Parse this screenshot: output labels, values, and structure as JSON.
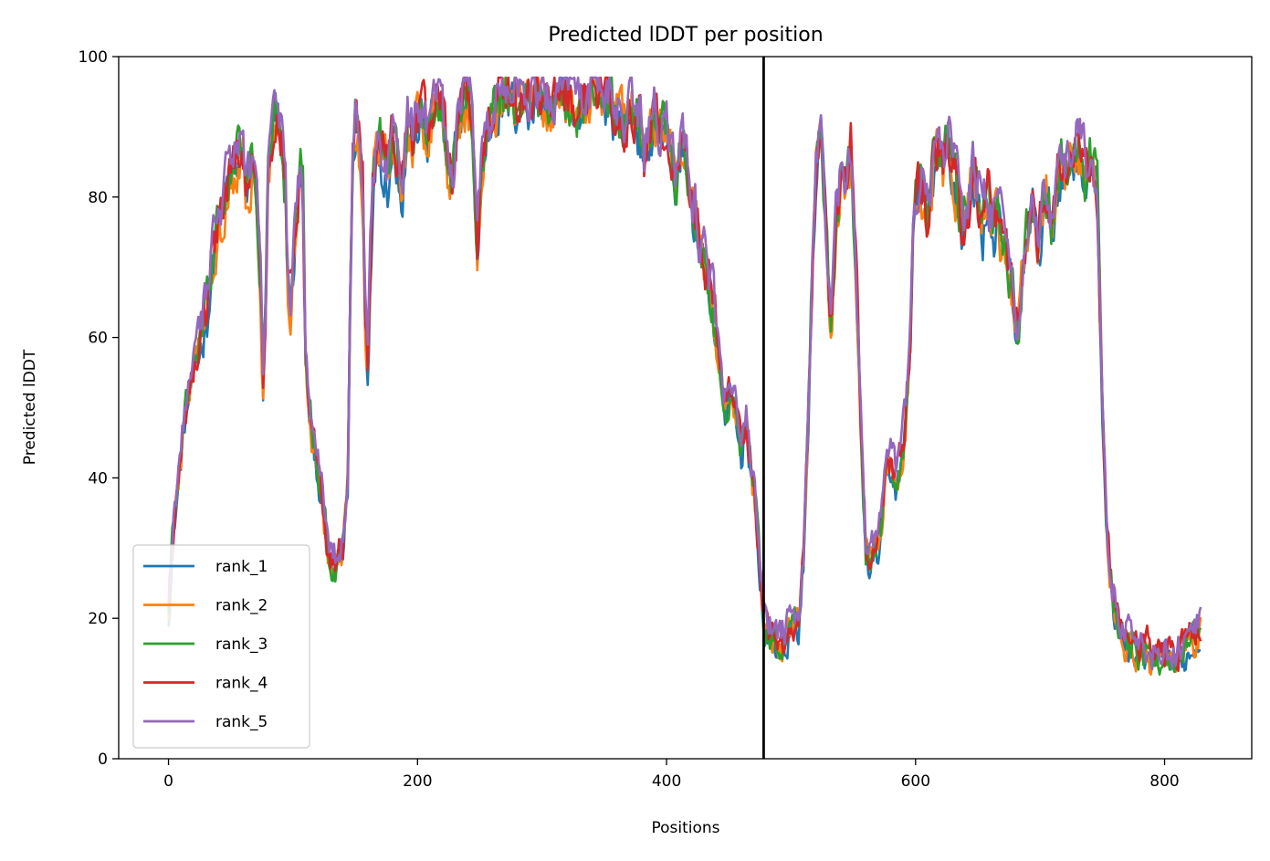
{
  "chart_data": {
    "type": "line",
    "title": "Predicted lDDT per position",
    "xlabel": "Positions",
    "ylabel": "Predicted lDDT",
    "xlim": [
      -40,
      870
    ],
    "ylim": [
      0,
      100
    ],
    "xticks": [
      0,
      200,
      400,
      600,
      800
    ],
    "yticks": [
      0,
      20,
      40,
      60,
      80,
      100
    ],
    "vline_x": 478,
    "legend_position": "lower left",
    "grid": false,
    "x_range": [
      0,
      829
    ],
    "profile": [
      [
        0,
        22
      ],
      [
        4,
        33
      ],
      [
        8,
        40
      ],
      [
        12,
        47
      ],
      [
        16,
        52
      ],
      [
        20,
        55
      ],
      [
        24,
        58
      ],
      [
        28,
        62
      ],
      [
        32,
        66
      ],
      [
        36,
        72
      ],
      [
        40,
        76
      ],
      [
        44,
        79
      ],
      [
        48,
        82
      ],
      [
        52,
        84
      ],
      [
        56,
        86
      ],
      [
        60,
        85
      ],
      [
        62,
        80
      ],
      [
        66,
        84
      ],
      [
        70,
        84
      ],
      [
        72,
        77
      ],
      [
        74,
        68
      ],
      [
        76,
        53
      ],
      [
        78,
        64
      ],
      [
        80,
        82
      ],
      [
        84,
        90
      ],
      [
        88,
        91
      ],
      [
        92,
        87
      ],
      [
        94,
        80
      ],
      [
        96,
        68
      ],
      [
        98,
        66
      ],
      [
        102,
        75
      ],
      [
        106,
        84
      ],
      [
        108,
        80
      ],
      [
        110,
        58
      ],
      [
        112,
        52
      ],
      [
        116,
        45
      ],
      [
        120,
        42
      ],
      [
        124,
        36
      ],
      [
        128,
        30
      ],
      [
        132,
        27
      ],
      [
        136,
        28
      ],
      [
        140,
        30
      ],
      [
        144,
        40
      ],
      [
        146,
        65
      ],
      [
        148,
        85
      ],
      [
        150,
        90
      ],
      [
        152,
        89
      ],
      [
        156,
        82
      ],
      [
        158,
        62
      ],
      [
        160,
        56
      ],
      [
        164,
        82
      ],
      [
        168,
        88
      ],
      [
        172,
        86
      ],
      [
        176,
        84
      ],
      [
        180,
        88
      ],
      [
        184,
        86
      ],
      [
        188,
        82
      ],
      [
        192,
        90
      ],
      [
        196,
        88
      ],
      [
        200,
        91
      ],
      [
        204,
        92
      ],
      [
        208,
        89
      ],
      [
        212,
        93
      ],
      [
        216,
        94
      ],
      [
        220,
        92
      ],
      [
        224,
        84
      ],
      [
        228,
        82
      ],
      [
        232,
        90
      ],
      [
        236,
        94
      ],
      [
        240,
        95
      ],
      [
        244,
        91
      ],
      [
        248,
        72
      ],
      [
        252,
        84
      ],
      [
        256,
        90
      ],
      [
        260,
        92
      ],
      [
        264,
        94
      ],
      [
        270,
        95
      ],
      [
        276,
        94
      ],
      [
        282,
        94
      ],
      [
        288,
        94
      ],
      [
        294,
        95
      ],
      [
        300,
        94
      ],
      [
        306,
        93
      ],
      [
        312,
        94
      ],
      [
        318,
        95
      ],
      [
        324,
        94
      ],
      [
        330,
        92
      ],
      [
        336,
        93
      ],
      [
        342,
        95
      ],
      [
        348,
        95
      ],
      [
        354,
        94
      ],
      [
        360,
        92
      ],
      [
        366,
        91
      ],
      [
        372,
        93
      ],
      [
        378,
        91
      ],
      [
        382,
        84
      ],
      [
        386,
        88
      ],
      [
        390,
        92
      ],
      [
        394,
        90
      ],
      [
        400,
        89
      ],
      [
        404,
        87
      ],
      [
        408,
        82
      ],
      [
        412,
        88
      ],
      [
        416,
        85
      ],
      [
        420,
        80
      ],
      [
        424,
        76
      ],
      [
        428,
        72
      ],
      [
        432,
        70
      ],
      [
        436,
        66
      ],
      [
        440,
        60
      ],
      [
        444,
        54
      ],
      [
        448,
        50
      ],
      [
        452,
        52
      ],
      [
        456,
        48
      ],
      [
        460,
        44
      ],
      [
        464,
        50
      ],
      [
        466,
        45
      ],
      [
        470,
        38
      ],
      [
        474,
        30
      ],
      [
        478,
        20
      ],
      [
        482,
        17
      ],
      [
        486,
        18
      ],
      [
        490,
        16
      ],
      [
        494,
        17
      ],
      [
        498,
        18
      ],
      [
        502,
        19
      ],
      [
        506,
        20
      ],
      [
        510,
        28
      ],
      [
        514,
        50
      ],
      [
        518,
        75
      ],
      [
        520,
        84
      ],
      [
        524,
        90
      ],
      [
        528,
        76
      ],
      [
        532,
        62
      ],
      [
        536,
        75
      ],
      [
        540,
        83
      ],
      [
        544,
        80
      ],
      [
        548,
        86
      ],
      [
        552,
        70
      ],
      [
        556,
        48
      ],
      [
        560,
        30
      ],
      [
        564,
        28
      ],
      [
        568,
        29
      ],
      [
        572,
        32
      ],
      [
        576,
        40
      ],
      [
        580,
        42
      ],
      [
        584,
        40
      ],
      [
        588,
        42
      ],
      [
        592,
        48
      ],
      [
        596,
        60
      ],
      [
        598,
        78
      ],
      [
        602,
        82
      ],
      [
        606,
        80
      ],
      [
        610,
        76
      ],
      [
        614,
        84
      ],
      [
        618,
        86
      ],
      [
        622,
        82
      ],
      [
        626,
        88
      ],
      [
        630,
        84
      ],
      [
        634,
        80
      ],
      [
        638,
        76
      ],
      [
        642,
        78
      ],
      [
        646,
        84
      ],
      [
        650,
        80
      ],
      [
        654,
        76
      ],
      [
        658,
        80
      ],
      [
        662,
        75
      ],
      [
        666,
        77
      ],
      [
        670,
        74
      ],
      [
        674,
        70
      ],
      [
        678,
        66
      ],
      [
        682,
        60
      ],
      [
        686,
        70
      ],
      [
        690,
        76
      ],
      [
        694,
        80
      ],
      [
        698,
        72
      ],
      [
        702,
        78
      ],
      [
        706,
        80
      ],
      [
        710,
        76
      ],
      [
        714,
        82
      ],
      [
        718,
        86
      ],
      [
        722,
        84
      ],
      [
        726,
        86
      ],
      [
        730,
        88
      ],
      [
        734,
        86
      ],
      [
        738,
        82
      ],
      [
        742,
        85
      ],
      [
        746,
        80
      ],
      [
        750,
        50
      ],
      [
        754,
        32
      ],
      [
        758,
        24
      ],
      [
        762,
        20
      ],
      [
        766,
        18
      ],
      [
        770,
        17
      ],
      [
        774,
        16
      ],
      [
        778,
        15
      ],
      [
        782,
        15
      ],
      [
        786,
        15
      ],
      [
        790,
        14
      ],
      [
        794,
        15
      ],
      [
        798,
        15
      ],
      [
        802,
        14
      ],
      [
        806,
        15
      ],
      [
        810,
        14
      ],
      [
        814,
        15
      ],
      [
        818,
        16
      ],
      [
        822,
        17
      ],
      [
        826,
        18
      ],
      [
        829,
        19
      ]
    ],
    "series": [
      {
        "name": "rank_1",
        "color": "#1f77b4"
      },
      {
        "name": "rank_2",
        "color": "#ff7f0e"
      },
      {
        "name": "rank_3",
        "color": "#2ca02c"
      },
      {
        "name": "rank_4",
        "color": "#d62728"
      },
      {
        "name": "rank_5",
        "color": "#9467bd"
      }
    ]
  }
}
